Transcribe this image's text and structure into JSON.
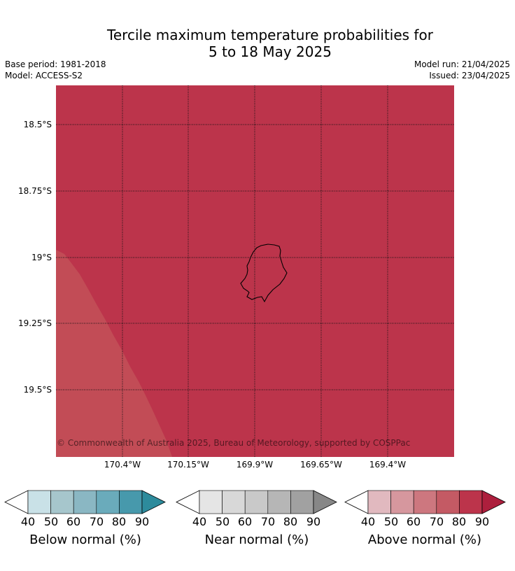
{
  "title_line1": "Tercile maximum temperature probabilities for",
  "title_line2": "5 to 18 May 2025",
  "base_period": "Base period: 1981-2018",
  "model": "Model: ACCESS-S2",
  "model_run": "Model run: 21/04/2025",
  "issued": "Issued: 23/04/2025",
  "map": {
    "background_color": "#bc344b",
    "region_color": "#c24c56",
    "latitude_labels": [
      "18.5°S",
      "18.75°S",
      "19°S",
      "19.25°S",
      "19.5°S"
    ],
    "longitude_labels": [
      "170.4°W",
      "170.15°W",
      "169.9°W",
      "169.65°W",
      "169.4°W"
    ],
    "copyright": "© Commonwealth of Australia 2025, Bureau of Meteorology, supported by COSPPac"
  },
  "colorbars": [
    {
      "label": "Below normal (%)",
      "ticks": [
        "40",
        "50",
        "60",
        "70",
        "80",
        "90"
      ],
      "colors": [
        "#c9e1e7",
        "#a6c6cc",
        "#8ab7c3",
        "#6aabbb",
        "#4799ac",
        "#2d8b9c"
      ]
    },
    {
      "label": "Near normal (%)",
      "ticks": [
        "40",
        "50",
        "60",
        "70",
        "80",
        "90"
      ],
      "colors": [
        "#e5e5e5",
        "#d8d8d8",
        "#c9c9c9",
        "#b6b6b6",
        "#a1a1a1",
        "#878787"
      ]
    },
    {
      "label": "Above normal (%)",
      "ticks": [
        "40",
        "50",
        "60",
        "70",
        "80",
        "90"
      ],
      "colors": [
        "#e1b9bf",
        "#d6979e",
        "#cd777f",
        "#c45a64",
        "#bc344b",
        "#ad1f3d"
      ]
    }
  ]
}
